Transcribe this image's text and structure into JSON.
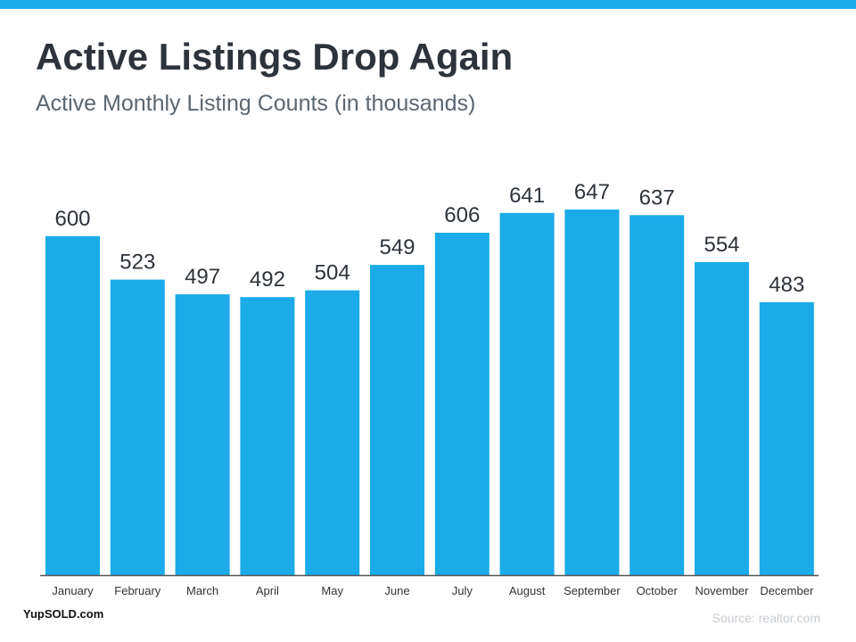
{
  "header": {
    "title": "Active Listings Drop Again",
    "subtitle": "Active Monthly Listing Counts (in thousands)"
  },
  "footer": {
    "brand": "YupSOLD.com",
    "source": "Source: realtor.com"
  },
  "colors": {
    "bar": "#1aabe8",
    "accent_band": "#1aabe8",
    "title": "#2d333a",
    "subtitle": "#5a6670"
  },
  "chart_data": {
    "type": "bar",
    "categories": [
      "January",
      "February",
      "March",
      "April",
      "May",
      "June",
      "July",
      "August",
      "September",
      "October",
      "November",
      "December"
    ],
    "values": [
      600,
      523,
      497,
      492,
      504,
      549,
      606,
      641,
      647,
      637,
      554,
      483
    ],
    "ylim": [
      0,
      650
    ],
    "grid": false,
    "legend": "none"
  }
}
